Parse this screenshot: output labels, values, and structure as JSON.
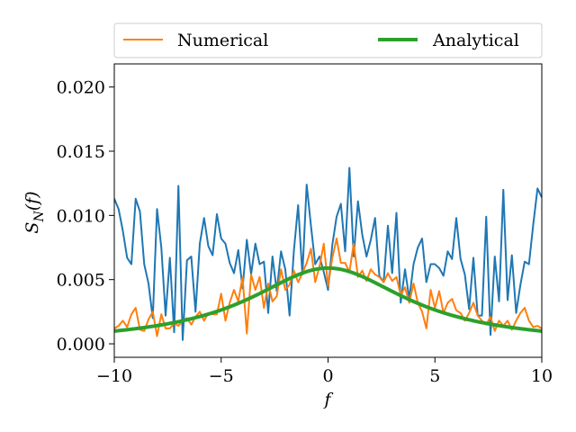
{
  "chart_data": {
    "type": "line",
    "xlabel": "f",
    "ylabel_main": "S",
    "ylabel_sub": "N",
    "ylabel_arg": "(f)",
    "xlim": [
      -10,
      10
    ],
    "ylim": [
      -0.00105,
      0.0218
    ],
    "x_ticks": [
      -10,
      -5,
      0,
      5,
      10
    ],
    "x_tick_labels": [
      "−10",
      "−5",
      "0",
      "5",
      "10"
    ],
    "y_ticks": [
      0.0,
      0.005,
      0.01,
      0.015,
      0.02
    ],
    "y_tick_labels": [
      "0.000",
      "0.005",
      "0.010",
      "0.015",
      "0.020"
    ],
    "grid": false,
    "legend_position": "above plot, two columns",
    "legend": [
      {
        "label": "Numerical",
        "series_index": 1
      },
      {
        "label": "Analytical",
        "series_index": 2
      }
    ],
    "series": [
      {
        "color": "#1f77b4",
        "line_width": 2,
        "x": [
          -10,
          -9.8,
          -9.6,
          -9.4,
          -9.2,
          -9.0,
          -8.8,
          -8.6,
          -8.4,
          -8.2,
          -8.0,
          -7.8,
          -7.6,
          -7.4,
          -7.2,
          -7.0,
          -6.8,
          -6.6,
          -6.4,
          -6.2,
          -6.0,
          -5.8,
          -5.6,
          -5.4,
          -5.2,
          -5.0,
          -4.8,
          -4.6,
          -4.4,
          -4.2,
          -4.0,
          -3.8,
          -3.6,
          -3.4,
          -3.2,
          -3.0,
          -2.8,
          -2.6,
          -2.4,
          -2.2,
          -2.0,
          -1.8,
          -1.6,
          -1.4,
          -1.2,
          -1.0,
          -0.8,
          -0.6,
          -0.4,
          -0.2,
          0.0,
          0.2,
          0.4,
          0.6,
          0.8,
          1.0,
          1.2,
          1.4,
          1.6,
          1.8,
          2.0,
          2.2,
          2.4,
          2.6,
          2.8,
          3.0,
          3.2,
          3.4,
          3.6,
          3.8,
          4.0,
          4.2,
          4.4,
          4.6,
          4.8,
          5.0,
          5.2,
          5.4,
          5.6,
          5.8,
          6.0,
          6.2,
          6.4,
          6.6,
          6.8,
          7.0,
          7.2,
          7.4,
          7.6,
          7.8,
          8.0,
          8.2,
          8.4,
          8.6,
          8.8,
          9.0,
          9.2,
          9.4,
          9.6,
          9.8,
          10.0
        ],
        "y": [
          0.0113,
          0.0105,
          0.0088,
          0.0067,
          0.0062,
          0.0113,
          0.0103,
          0.0062,
          0.0047,
          0.002,
          0.0105,
          0.0075,
          0.0022,
          0.0067,
          0.0009,
          0.0123,
          0.0003,
          0.0065,
          0.0068,
          0.0025,
          0.0078,
          0.0098,
          0.0076,
          0.0069,
          0.0101,
          0.0082,
          0.0078,
          0.0063,
          0.0055,
          0.0073,
          0.0043,
          0.0081,
          0.0054,
          0.0078,
          0.0062,
          0.0064,
          0.0024,
          0.0068,
          0.0041,
          0.0072,
          0.0058,
          0.0022,
          0.0072,
          0.0108,
          0.0054,
          0.0124,
          0.0092,
          0.0062,
          0.0068,
          0.0056,
          0.0042,
          0.0077,
          0.0099,
          0.0109,
          0.0072,
          0.0137,
          0.0068,
          0.0111,
          0.0085,
          0.0068,
          0.0081,
          0.0098,
          0.0053,
          0.0048,
          0.0092,
          0.0055,
          0.0102,
          0.0032,
          0.0058,
          0.0035,
          0.0062,
          0.0075,
          0.0082,
          0.0048,
          0.0062,
          0.0062,
          0.0059,
          0.0053,
          0.0072,
          0.0066,
          0.0098,
          0.0066,
          0.0054,
          0.0027,
          0.0067,
          0.0022,
          0.0022,
          0.0099,
          0.0007,
          0.0068,
          0.0033,
          0.012,
          0.0034,
          0.0069,
          0.0024,
          0.0046,
          0.0064,
          0.0062,
          0.0093,
          0.0121,
          0.0114
        ]
      },
      {
        "name": "Numerical",
        "color": "#ff7f0e",
        "line_width": 2,
        "x": [
          -10,
          -9.8,
          -9.6,
          -9.4,
          -9.2,
          -9.0,
          -8.8,
          -8.6,
          -8.4,
          -8.2,
          -8.0,
          -7.8,
          -7.6,
          -7.4,
          -7.2,
          -7.0,
          -6.8,
          -6.6,
          -6.4,
          -6.2,
          -6.0,
          -5.8,
          -5.6,
          -5.4,
          -5.2,
          -5.0,
          -4.8,
          -4.6,
          -4.4,
          -4.2,
          -4.0,
          -3.8,
          -3.6,
          -3.4,
          -3.2,
          -3.0,
          -2.8,
          -2.6,
          -2.4,
          -2.2,
          -2.0,
          -1.8,
          -1.6,
          -1.4,
          -1.2,
          -1.0,
          -0.8,
          -0.6,
          -0.4,
          -0.2,
          0.0,
          0.2,
          0.4,
          0.6,
          0.8,
          1.0,
          1.2,
          1.4,
          1.6,
          1.8,
          2.0,
          2.2,
          2.4,
          2.6,
          2.8,
          3.0,
          3.2,
          3.4,
          3.6,
          3.8,
          4.0,
          4.2,
          4.4,
          4.6,
          4.8,
          5.0,
          5.2,
          5.4,
          5.6,
          5.8,
          6.0,
          6.2,
          6.4,
          6.6,
          6.8,
          7.0,
          7.2,
          7.4,
          7.6,
          7.8,
          8.0,
          8.2,
          8.4,
          8.6,
          8.8,
          9.0,
          9.2,
          9.4,
          9.6,
          9.8,
          10.0
        ],
        "y": [
          0.0012,
          0.0014,
          0.0018,
          0.0013,
          0.0023,
          0.0028,
          0.0011,
          0.001,
          0.0019,
          0.0025,
          0.0006,
          0.0023,
          0.0012,
          0.0012,
          0.0016,
          0.0014,
          0.0018,
          0.002,
          0.0015,
          0.0021,
          0.0025,
          0.0018,
          0.0024,
          0.0023,
          0.0023,
          0.0039,
          0.0018,
          0.0032,
          0.0042,
          0.0033,
          0.0052,
          0.0008,
          0.0054,
          0.0042,
          0.0052,
          0.0028,
          0.0047,
          0.0033,
          0.0037,
          0.0058,
          0.0042,
          0.0046,
          0.0057,
          0.0048,
          0.0055,
          0.0063,
          0.0074,
          0.0048,
          0.006,
          0.0078,
          0.0045,
          0.0067,
          0.0082,
          0.0063,
          0.0063,
          0.0056,
          0.0078,
          0.0052,
          0.0057,
          0.0049,
          0.0058,
          0.0054,
          0.0052,
          0.0048,
          0.0055,
          0.0049,
          0.0052,
          0.0038,
          0.0044,
          0.0032,
          0.0047,
          0.0032,
          0.0025,
          0.0012,
          0.0042,
          0.0028,
          0.0041,
          0.0024,
          0.0032,
          0.0035,
          0.0026,
          0.0024,
          0.0018,
          0.0024,
          0.0032,
          0.0022,
          0.0018,
          0.0015,
          0.0021,
          0.001,
          0.0018,
          0.0014,
          0.0018,
          0.0011,
          0.0018,
          0.0024,
          0.0028,
          0.0018,
          0.0013,
          0.0014,
          0.0012
        ]
      },
      {
        "name": "Analytical",
        "color": "#2ca02c",
        "line_width": 4,
        "function": "lorentzian",
        "peak": 0.0059,
        "half_width": 4.5,
        "x_range": [
          -10,
          10
        ]
      }
    ]
  }
}
